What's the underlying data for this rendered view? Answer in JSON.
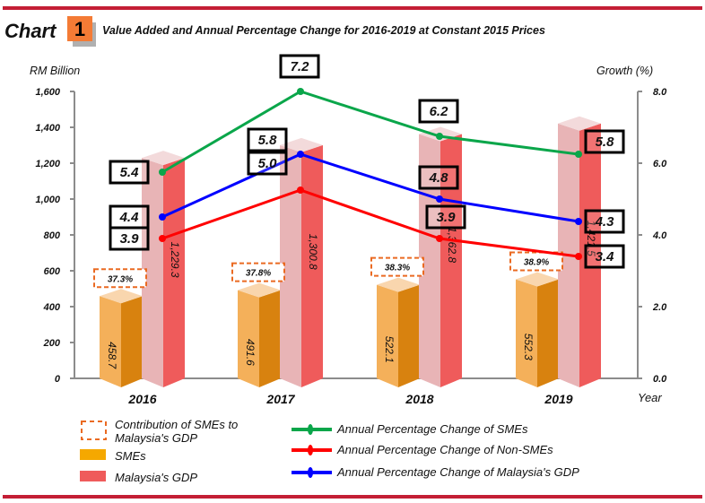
{
  "header": {
    "chart_word": "Chart",
    "chart_number": "1",
    "title": "Value Added and Annual Percentage Change for 2016-2019 at Constant 2015 Prices"
  },
  "colors": {
    "rule": "#c41e35",
    "badge": "#f47b35",
    "sme_front": "#f4b05a",
    "sme_side": "#d8820f",
    "sme_top": "#f9d6ae",
    "gdp_front": "#e8b4b6",
    "gdp_side": "#ef5b5b",
    "gdp_top": "#f3dadb",
    "contribution_box": "#ea6a22",
    "line_sme": "#0aa64a",
    "line_non_sme": "#ff0000",
    "line_gdp": "#0000ff",
    "axis": "#8c8c8c"
  },
  "chart_data": {
    "type": "bar",
    "title": "Value Added and Annual Percentage Change for 2016-2019 at Constant 2015 Prices",
    "xlabel": "Year",
    "ylabel": "RM Billion",
    "y2label": "Growth (%)",
    "categories": [
      "2016",
      "2017",
      "2018",
      "2019"
    ],
    "ylim": [
      0,
      1600
    ],
    "y_ticks": [
      "0",
      "200",
      "400",
      "600",
      "800",
      "1,000",
      "1,200",
      "1,400",
      "1,600"
    ],
    "y_tick_values": [
      0,
      200,
      400,
      600,
      800,
      1000,
      1200,
      1400,
      1600
    ],
    "y2lim": [
      0,
      8
    ],
    "y2_ticks": [
      "0.0",
      "2.0",
      "4.0",
      "6.0",
      "8.0"
    ],
    "y2_tick_values": [
      0,
      2,
      4,
      6,
      8
    ],
    "grid": false,
    "series": [
      {
        "name": "SMEs",
        "type": "bar",
        "axis": "left",
        "values": [
          458.7,
          491.6,
          522.1,
          552.3
        ],
        "labels": [
          "458.7",
          "491.6",
          "522.1",
          "552.3"
        ]
      },
      {
        "name": "Malaysia's GDP",
        "type": "bar",
        "axis": "left",
        "values": [
          1229.3,
          1300.8,
          1362.8,
          1421.5
        ],
        "labels": [
          "1,229.3",
          "1,300.8",
          "1,362.8",
          "1,421.5"
        ]
      },
      {
        "name": "Annual Percentage Change of SMEs",
        "type": "line",
        "axis": "right",
        "values": [
          5.4,
          7.2,
          6.2,
          5.8
        ],
        "labels": [
          "5.4",
          "7.2",
          "6.2",
          "5.8"
        ]
      },
      {
        "name": "Annual Percentage Change of  Non-SMEs",
        "type": "line",
        "axis": "right",
        "values": [
          3.9,
          5.0,
          3.9,
          3.4
        ],
        "labels": [
          "3.9",
          "5.0",
          "3.9",
          "3.4"
        ]
      },
      {
        "name": "Annual Percentage Change of Malaysia's GDP",
        "type": "line",
        "axis": "right",
        "values": [
          4.4,
          5.8,
          4.8,
          4.3
        ],
        "labels": [
          "4.4",
          "5.8",
          "4.8",
          "4.3"
        ]
      }
    ],
    "contribution": {
      "name": "Contribution of SMEs to Malaysia's GDP",
      "values": [
        37.3,
        37.8,
        38.3,
        38.9
      ],
      "labels": [
        "37.3%",
        "37.8%",
        "38.3%",
        "38.9%"
      ]
    },
    "legend_position": "bottom"
  },
  "legend": {
    "contribution_line1": "Contribution of SMEs to",
    "contribution_line2": "Malaysia's GDP",
    "smes": "SMEs",
    "gdp": "Malaysia's GDP",
    "line_sme": "Annual Percentage Change of SMEs",
    "line_non_sme": "Annual Percentage Change of  Non-SMEs",
    "line_gdp": "Annual Percentage Change of Malaysia's GDP"
  }
}
